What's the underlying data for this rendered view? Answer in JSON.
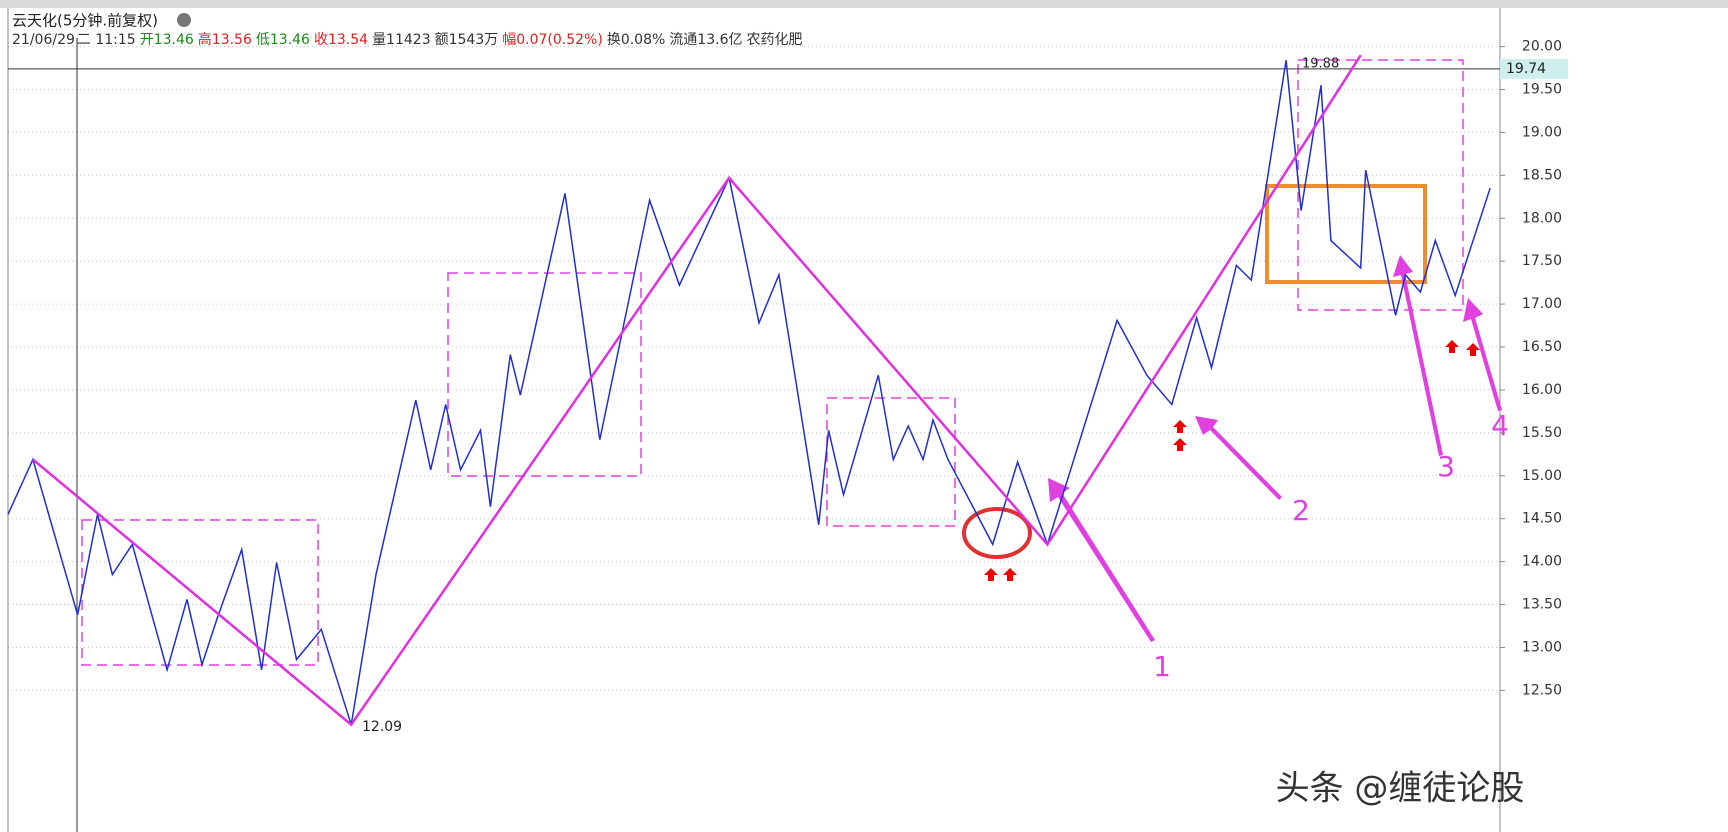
{
  "header": {
    "title": "云天化(5分钟.前复权)",
    "info": [
      {
        "text": "21/06/29",
        "color": "#333333"
      },
      {
        "text": "二 11:15",
        "color": "#333333"
      },
      {
        "text": "开13.46",
        "color": "#1a8a1a"
      },
      {
        "text": "高13.56",
        "color": "#e02020"
      },
      {
        "text": "低13.46",
        "color": "#1a8a1a"
      },
      {
        "text": "收13.54",
        "color": "#e02020"
      },
      {
        "text": "量11423",
        "color": "#333333"
      },
      {
        "text": "额1543万",
        "color": "#333333"
      },
      {
        "text": "幅0.07(0.52%)",
        "color": "#e02020"
      },
      {
        "text": "换0.08%",
        "color": "#333333"
      },
      {
        "text": "流通13.6亿",
        "color": "#333333"
      },
      {
        "text": "农药化肥",
        "color": "#333333"
      }
    ]
  },
  "chart_data": {
    "type": "line",
    "xlim": [
      0,
      300
    ],
    "ylim": [
      10.85,
      20.1
    ],
    "grid": true,
    "yticks": [
      {
        "value": 12.5,
        "label": "12.50"
      },
      {
        "value": 13,
        "label": "13.00"
      },
      {
        "value": 13.5,
        "label": "13.50"
      },
      {
        "value": 14,
        "label": "14.00"
      },
      {
        "value": 14.5,
        "label": "14.50"
      },
      {
        "value": 15,
        "label": "15.00"
      },
      {
        "value": 15.5,
        "label": "15.50"
      },
      {
        "value": 16,
        "label": "16.00"
      },
      {
        "value": 16.5,
        "label": "16.50"
      },
      {
        "value": 17,
        "label": "17.00"
      },
      {
        "value": 17.5,
        "label": "17.50"
      },
      {
        "value": 18,
        "label": "18.00"
      },
      {
        "value": 18.5,
        "label": "18.50"
      },
      {
        "value": 19,
        "label": "19.00"
      },
      {
        "value": 19.5,
        "label": "19.50"
      },
      {
        "value": 20,
        "label": "20.00"
      }
    ],
    "series": [
      {
        "color": "#1f2fd0",
        "x": [
          0,
          5,
          14,
          18,
          21,
          25,
          32,
          36,
          39,
          42,
          47,
          51,
          54,
          58,
          63,
          69,
          74,
          82,
          85,
          88,
          91,
          95,
          97,
          101,
          103,
          112,
          119,
          129,
          135,
          145,
          151,
          155,
          163,
          165,
          168,
          175,
          178,
          181,
          184,
          186,
          189,
          198,
          203,
          209,
          223,
          229,
          234,
          239,
          242,
          247,
          250,
          257,
          260,
          264,
          266,
          272,
          273,
          279,
          281,
          284,
          287,
          291,
          298
        ],
        "values": [
          14.55,
          15.19,
          13.38,
          14.55,
          13.85,
          14.2,
          12.74,
          13.56,
          12.8,
          13.33,
          14.14,
          12.74,
          13.99,
          12.86,
          13.21,
          12.1,
          13.85,
          15.88,
          15.07,
          15.83,
          15.07,
          15.53,
          14.64,
          16.41,
          15.94,
          18.29,
          15.42,
          18.21,
          17.22,
          18.47,
          16.78,
          17.34,
          14.43,
          15.53,
          14.78,
          16.17,
          15.19,
          15.58,
          15.19,
          15.65,
          15.19,
          14.2,
          15.16,
          14.2,
          16.81,
          16.17,
          15.83,
          16.84,
          16.26,
          17.45,
          17.28,
          19.84,
          18.09,
          19.55,
          17.74,
          17.42,
          18.56,
          16.87,
          17.34,
          17.14,
          17.74,
          17.1,
          18.35
        ]
      },
      {
        "color": "#e030e0",
        "x": [
          5,
          69,
          145,
          209,
          272
        ],
        "values": [
          15.19,
          12.1,
          18.47,
          14.2,
          19.9
        ]
      }
    ],
    "last_price": {
      "value": 19.74,
      "label": "19.74"
    },
    "low_label": "12.09",
    "high_label": "19.88",
    "annotations": [
      "1",
      "2",
      "3",
      "4"
    ],
    "watermark": "头条 @缠徒论股"
  }
}
